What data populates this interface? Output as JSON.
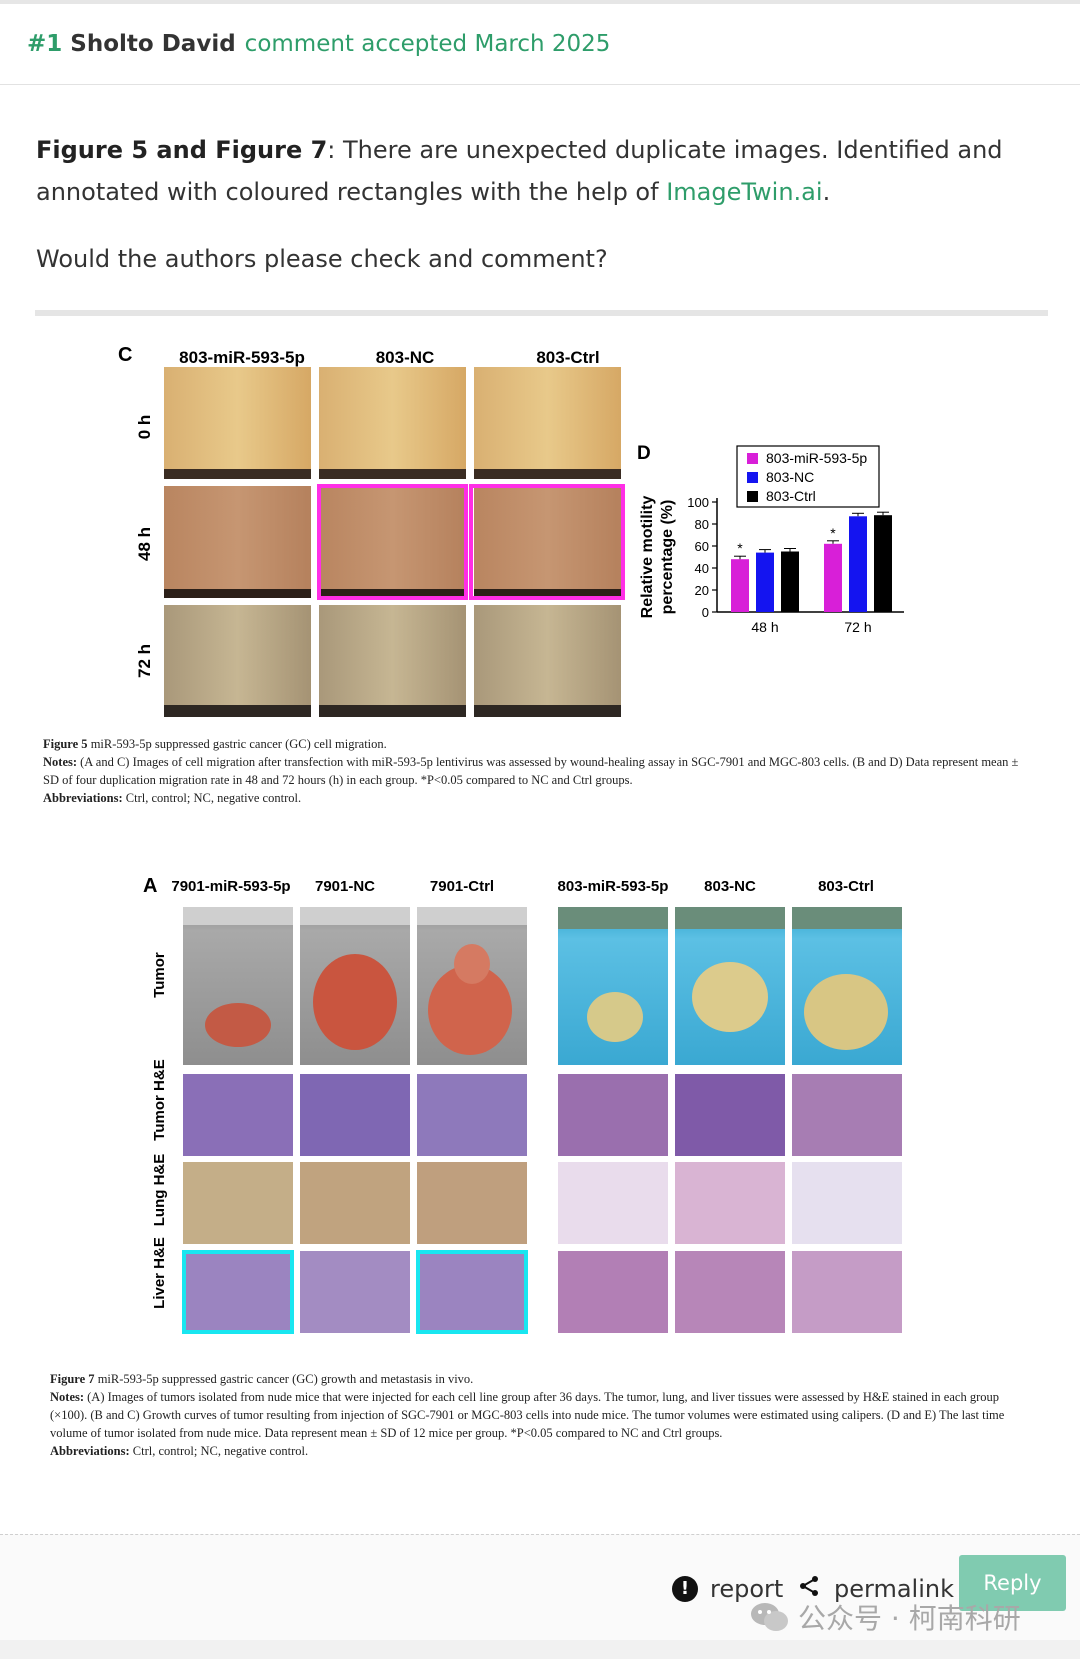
{
  "header": {
    "number": "#1",
    "author": "Sholto David",
    "meta": "comment accepted March 2025"
  },
  "comment": {
    "lead": "Figure 5 and Figure 7",
    "text_a": ": There are unexpected duplicate images. Identified and annotated with coloured rectangles with the help of ",
    "link": "ImageTwin.ai",
    "text_b": ".",
    "question": "Would the authors please check and comment?"
  },
  "figure5": {
    "panel_c": "C",
    "col_headers": [
      "803-miR-593-5p",
      "803-NC",
      "803-Ctrl"
    ],
    "row_labels": [
      "0 h",
      "48 h",
      "72 h"
    ],
    "panel_d": "D",
    "caption_title_bold": "Figure 5",
    "caption_title": " miR-593-5p suppressed gastric cancer (GC) cell migration.",
    "caption_notes_bold": "Notes:",
    "caption_notes": " (A and C) Images of cell migration after transfection with miR-593-5p lentivirus was assessed by wound-healing assay in SGC-7901 and MGC-803 cells. (B and D) Data represent mean ± SD of four duplication migration rate in 48 and 72 hours (h) in each group. *P<0.05 compared to NC and Ctrl groups.",
    "caption_abbr_bold": "Abbreviations:",
    "caption_abbr": " Ctrl, control; NC, negative control."
  },
  "chart_data": {
    "type": "bar",
    "categories": [
      "48 h",
      "72 h"
    ],
    "series": [
      {
        "name": "803-miR-593-5p",
        "values": [
          48,
          62
        ],
        "color": "#d81fd8"
      },
      {
        "name": "803-NC",
        "values": [
          54,
          87
        ],
        "color": "#1414f0"
      },
      {
        "name": "803-Ctrl",
        "values": [
          55,
          88
        ],
        "color": "#000000"
      }
    ],
    "significance": [
      "*",
      "*"
    ],
    "ylabel_line1": "Relative motility",
    "ylabel_line2": "percentage (%)",
    "yticks": [
      "0",
      "20",
      "40",
      "60",
      "80",
      "100"
    ],
    "ylim": [
      0,
      100
    ],
    "legend_position": "top-right"
  },
  "figure7": {
    "panel_a": "A",
    "left_headers": [
      "7901-miR-593-5p",
      "7901-NC",
      "7901-Ctrl"
    ],
    "right_headers": [
      "803-miR-593-5p",
      "803-NC",
      "803-Ctrl"
    ],
    "row_labels": [
      "Tumor",
      "Tumor H&E",
      "Lung H&E",
      "Liver H&E"
    ],
    "caption_title_bold": "Figure 7",
    "caption_title": " miR-593-5p suppressed gastric cancer (GC) growth and metastasis in vivo.",
    "caption_notes_bold": "Notes:",
    "caption_notes": " (A) Images of tumors isolated from nude mice that were injected for each cell line group after 36 days. The tumor, lung, and liver tissues were assessed by H&E stained in each group (×100). (B and C) Growth curves of tumor resulting from injection of SGC-7901 or MGC-803 cells into nude mice. The tumor volumes were estimated using calipers. (D and E) The last time volume of tumor isolated from nude mice. Data represent mean ± SD of 12 mice per group. *P<0.05 compared to NC and Ctrl groups.",
    "caption_abbr_bold": "Abbreviations:",
    "caption_abbr": " Ctrl, control; NC, negative control."
  },
  "highlights": {
    "figure5_color": "#ff2ee6",
    "figure7_color": "#19e6f0"
  },
  "footer": {
    "report_label": "report",
    "permalink_label": "permalink",
    "reply_label": "Reply",
    "watermark": "公众号 · 柯南科研"
  }
}
